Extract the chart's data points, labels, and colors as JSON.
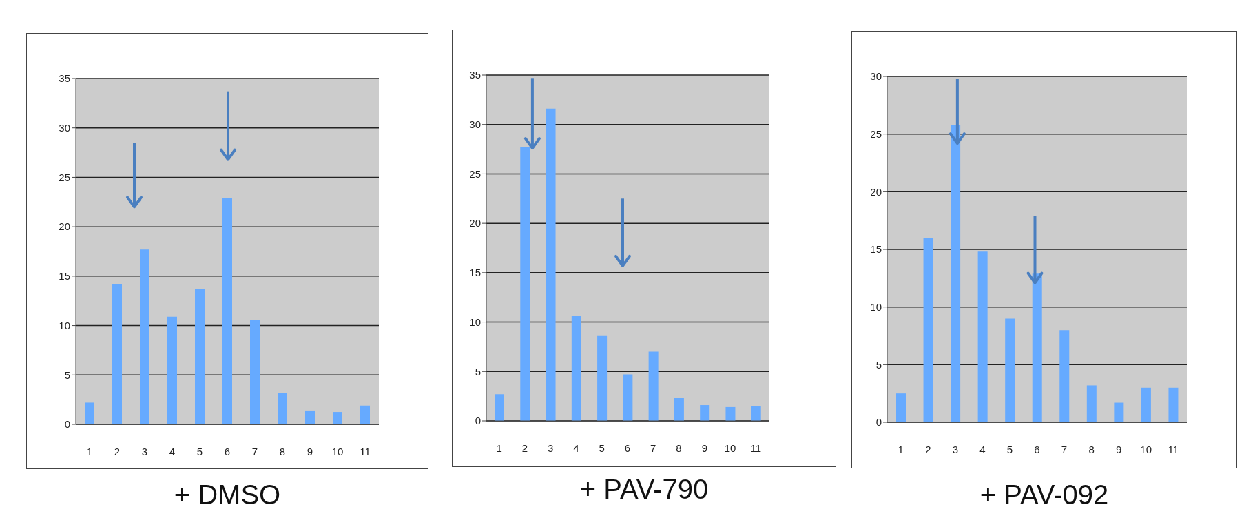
{
  "chart_data": [
    {
      "type": "bar",
      "title": "+ DMSO",
      "categories": [
        "1",
        "2",
        "3",
        "4",
        "5",
        "6",
        "7",
        "8",
        "9",
        "10",
        "11"
      ],
      "values": [
        2.2,
        14.2,
        17.7,
        10.9,
        13.7,
        22.9,
        10.6,
        3.2,
        1.4,
        1.25,
        1.9
      ],
      "color": "#66aaff",
      "ylim": [
        0,
        35
      ],
      "yticks": [
        0,
        5,
        10,
        15,
        20,
        25,
        30,
        35
      ],
      "grid": "y"
    },
    {
      "type": "bar",
      "title": "+ PAV-790",
      "categories": [
        "1",
        "2",
        "3",
        "4",
        "5",
        "6",
        "7",
        "8",
        "9",
        "10",
        "11"
      ],
      "values": [
        2.7,
        27.7,
        31.6,
        10.6,
        8.6,
        4.7,
        7.0,
        2.3,
        1.6,
        1.4,
        1.5
      ],
      "color": "#66aaff",
      "ylim": [
        0,
        35
      ],
      "yticks": [
        0,
        5,
        10,
        15,
        20,
        25,
        30,
        35
      ],
      "grid": "y"
    },
    {
      "type": "bar",
      "title": "+ PAV-092",
      "categories": [
        "1",
        "2",
        "3",
        "4",
        "5",
        "6",
        "7",
        "8",
        "9",
        "10",
        "11"
      ],
      "values": [
        2.5,
        16.0,
        25.8,
        14.8,
        9.0,
        12.9,
        8.0,
        3.2,
        1.7,
        3.0,
        3.0
      ],
      "color": "#66aaff",
      "ylim": [
        0,
        30
      ],
      "yticks": [
        0,
        5,
        10,
        15,
        20,
        25,
        30
      ],
      "grid": "y"
    }
  ]
}
